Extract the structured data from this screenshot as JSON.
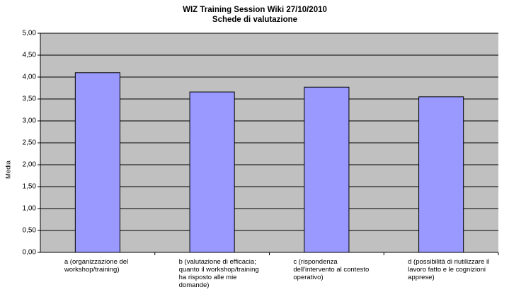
{
  "chart_data": {
    "type": "bar",
    "title": "WIZ Training Session Wiki 27/10/2010",
    "subtitle": "Schede di valutazione",
    "y_label": "Media",
    "categories": [
      "a (organizzazione del workshop/training)",
      "b (valutazione di efficacia; quanto il workshop/training ha risposto alle mie domande)",
      "c (rispondenza dell'intervento al contesto operativo)",
      "d (possibilità di riutilizzare il lavoro fatto e le cognizioni apprese)"
    ],
    "values": [
      4.1,
      3.66,
      3.77,
      3.55
    ],
    "color": "#9999ff",
    "ylim": [
      0,
      5
    ],
    "yticks": [
      {
        "value": 0,
        "label": "0,00"
      },
      {
        "value": 0.5,
        "label": "0,50"
      },
      {
        "value": 1,
        "label": "1,00"
      },
      {
        "value": 1.5,
        "label": "1,50"
      },
      {
        "value": 2,
        "label": "2,00"
      },
      {
        "value": 2.5,
        "label": "2,50"
      },
      {
        "value": 3,
        "label": "3,00"
      },
      {
        "value": 3.5,
        "label": "3,50"
      },
      {
        "value": 4,
        "label": "4,00"
      },
      {
        "value": 4.5,
        "label": "4,50"
      },
      {
        "value": 5,
        "label": "5,00"
      }
    ],
    "grid": true
  }
}
